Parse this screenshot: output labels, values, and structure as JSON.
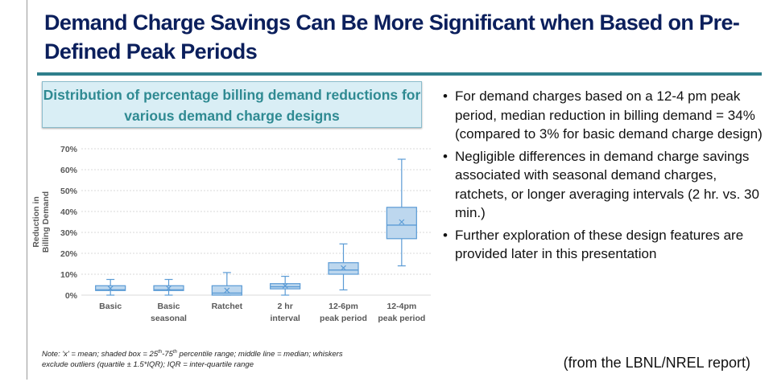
{
  "slide": {
    "title": "Demand Charge Savings Can Be More Significant when Based on Pre-Defined Peak Periods",
    "bullets": [
      "For demand charges based on a 12-4 pm peak period, median reduction in billing demand = 34% (compared to 3% for basic demand charge design)",
      "Negligible differences in demand charge savings associated with seasonal demand charges, ratchets, or longer averaging intervals (2 hr. vs. 30 min.)",
      "Further exploration of these design features are provided later in this presentation"
    ],
    "caption": "(from the LBNL/NREL report)",
    "note": "Note: 'x' = mean; shaded box = 25th-75th percentile range; middle line = median; whiskers exclude outliers (quartile ± 1.5*IQR); IQR = inter-quartile range"
  },
  "chart_data": {
    "type": "boxplot",
    "title": "Distribution of percentage billing demand reductions for various demand charge designs",
    "ylabel": "Reduction in Billing Demand",
    "ylim": [
      0,
      70
    ],
    "yticks": [
      "0%",
      "10%",
      "20%",
      "30%",
      "40%",
      "50%",
      "60%",
      "70%"
    ],
    "grid": true,
    "color": "#5b9bd5",
    "fill": "#bdd7ee",
    "categories": [
      [
        "Basic"
      ],
      [
        "Basic",
        "seasonal"
      ],
      [
        "Ratchet"
      ],
      [
        "2 hr",
        "interval"
      ],
      [
        "12-6pm",
        "peak period"
      ],
      [
        "12-4pm",
        "peak period"
      ]
    ],
    "boxes": [
      {
        "min": 0,
        "q1": 2.2,
        "median": 2.5,
        "q3": 4.5,
        "max": 7.5,
        "mean": 3.2
      },
      {
        "min": 0,
        "q1": 2.2,
        "median": 2.5,
        "q3": 4.5,
        "max": 7.5,
        "mean": 3.3
      },
      {
        "min": 0,
        "q1": 0,
        "median": 1,
        "q3": 4.5,
        "max": 10.8,
        "mean": 2.3
      },
      {
        "min": 0,
        "q1": 3,
        "median": 4,
        "q3": 5.5,
        "max": 9,
        "mean": 4.5
      },
      {
        "min": 2.5,
        "q1": 10,
        "median": 12,
        "q3": 15.5,
        "max": 24.5,
        "mean": 13
      },
      {
        "min": 14,
        "q1": 27,
        "median": 33.5,
        "q3": 42,
        "max": 65,
        "mean": 35
      }
    ]
  }
}
